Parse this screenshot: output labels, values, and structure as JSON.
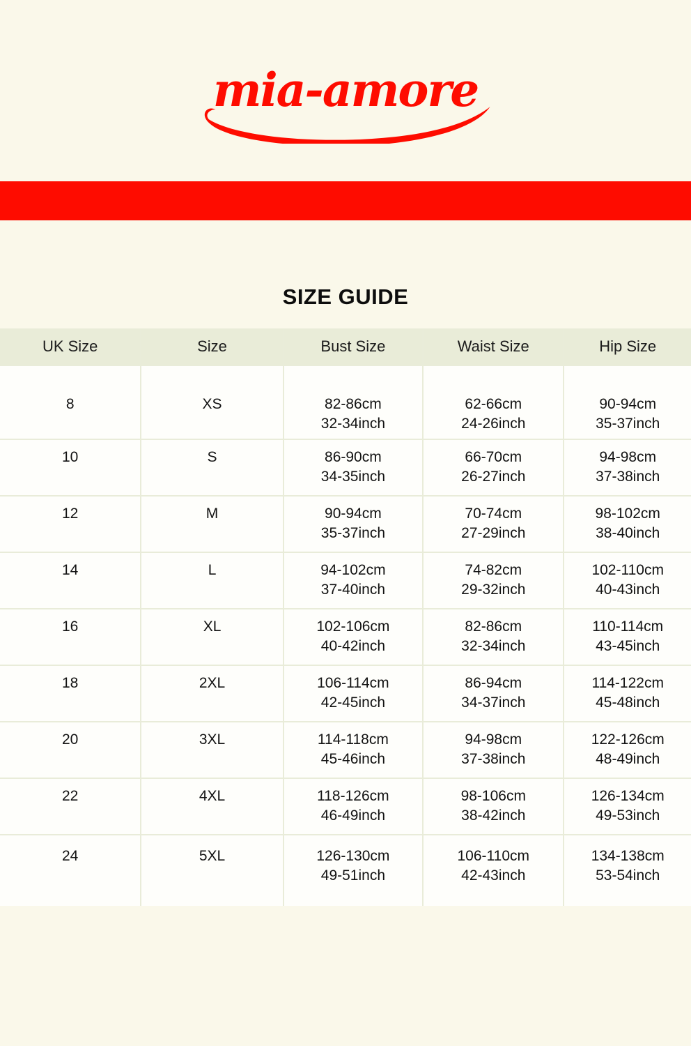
{
  "brand": {
    "logo_text": "mia-amore",
    "logo_color": "#fe0c00"
  },
  "banner": {
    "color": "#fe0c00"
  },
  "page": {
    "title": "SIZE GUIDE",
    "background_color": "#faf8ea"
  },
  "table": {
    "header_background": "#e9ecd8",
    "columns": [
      "UK Size",
      "Size",
      "Bust Size",
      "Waist Size",
      "Hip Size"
    ],
    "rows": [
      {
        "uk": "8",
        "size": "XS",
        "bust_cm": "82-86cm",
        "bust_in": "32-34inch",
        "waist_cm": "62-66cm",
        "waist_in": "24-26inch",
        "hip_cm": "90-94cm",
        "hip_in": "35-37inch"
      },
      {
        "uk": "10",
        "size": "S",
        "bust_cm": "86-90cm",
        "bust_in": "34-35inch",
        "waist_cm": "66-70cm",
        "waist_in": "26-27inch",
        "hip_cm": "94-98cm",
        "hip_in": "37-38inch"
      },
      {
        "uk": "12",
        "size": "M",
        "bust_cm": "90-94cm",
        "bust_in": "35-37inch",
        "waist_cm": "70-74cm",
        "waist_in": "27-29inch",
        "hip_cm": "98-102cm",
        "hip_in": "38-40inch"
      },
      {
        "uk": "14",
        "size": "L",
        "bust_cm": "94-102cm",
        "bust_in": "37-40inch",
        "waist_cm": "74-82cm",
        "waist_in": "29-32inch",
        "hip_cm": "102-110cm",
        "hip_in": "40-43inch"
      },
      {
        "uk": "16",
        "size": "XL",
        "bust_cm": "102-106cm",
        "bust_in": "40-42inch",
        "waist_cm": "82-86cm",
        "waist_in": "32-34inch",
        "hip_cm": "110-114cm",
        "hip_in": "43-45inch"
      },
      {
        "uk": "18",
        "size": "2XL",
        "bust_cm": "106-114cm",
        "bust_in": "42-45inch",
        "waist_cm": "86-94cm",
        "waist_in": "34-37inch",
        "hip_cm": "114-122cm",
        "hip_in": "45-48inch"
      },
      {
        "uk": "20",
        "size": "3XL",
        "bust_cm": "114-118cm",
        "bust_in": "45-46inch",
        "waist_cm": "94-98cm",
        "waist_in": "37-38inch",
        "hip_cm": "122-126cm",
        "hip_in": "48-49inch"
      },
      {
        "uk": "22",
        "size": "4XL",
        "bust_cm": "118-126cm",
        "bust_in": "46-49inch",
        "waist_cm": "98-106cm",
        "waist_in": "38-42inch",
        "hip_cm": "126-134cm",
        "hip_in": "49-53inch"
      },
      {
        "uk": "24",
        "size": "5XL",
        "bust_cm": "126-130cm",
        "bust_in": "49-51inch",
        "waist_cm": "106-110cm",
        "waist_in": "42-43inch",
        "hip_cm": "134-138cm",
        "hip_in": "53-54inch"
      }
    ]
  }
}
